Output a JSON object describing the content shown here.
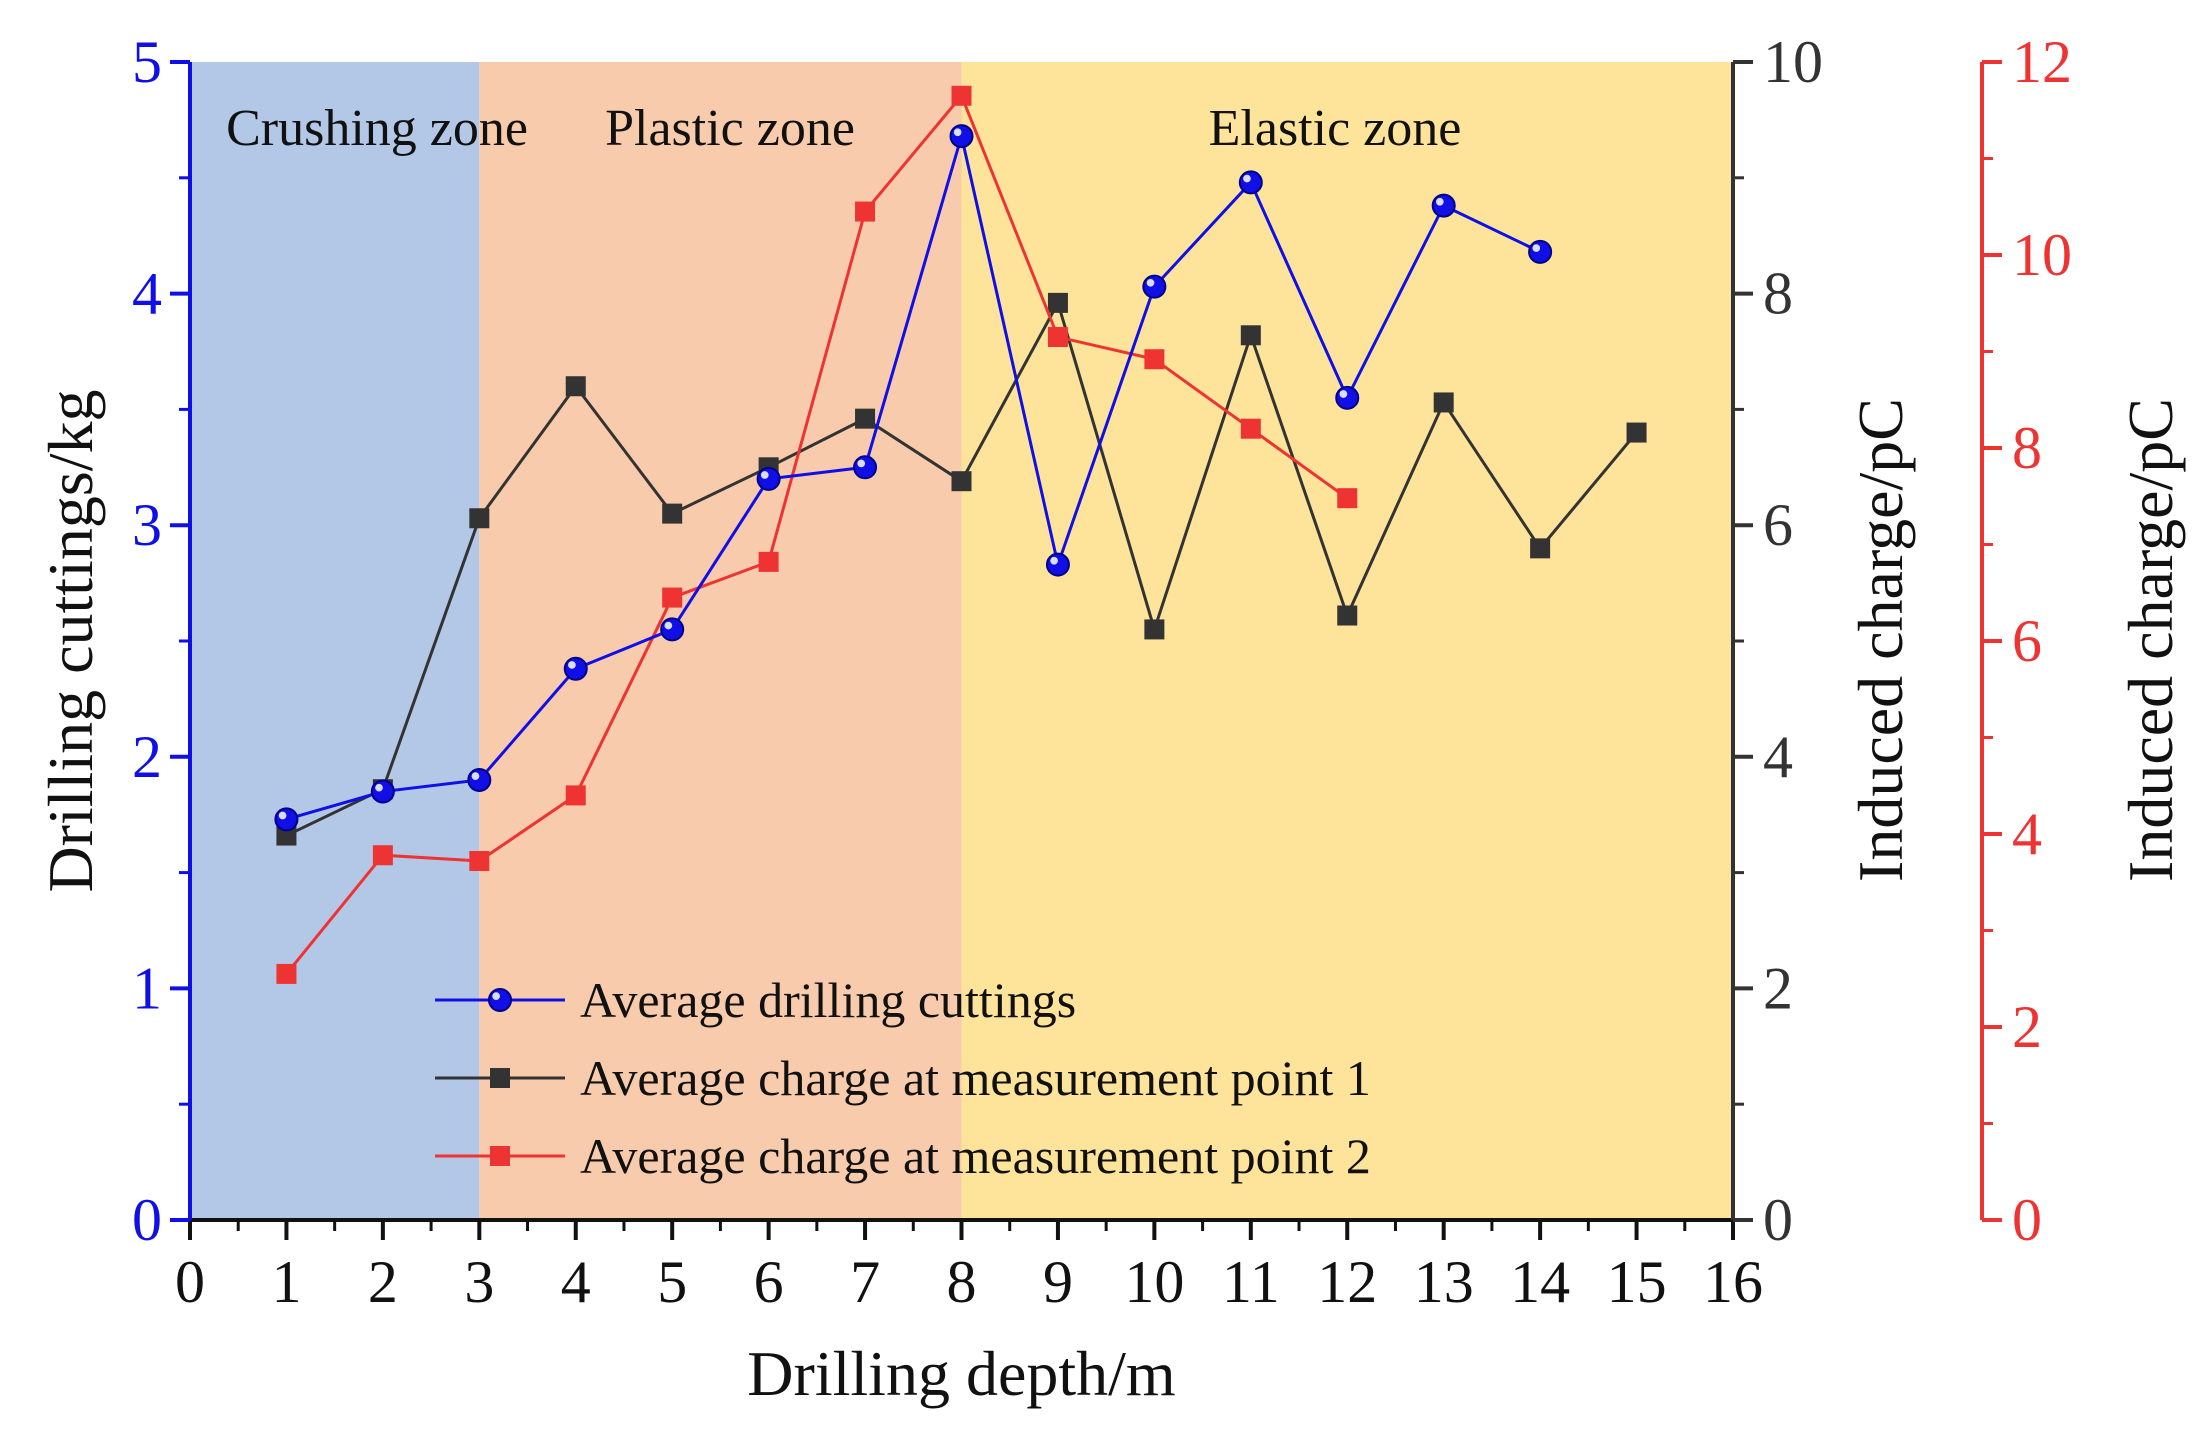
{
  "chart_data": {
    "type": "line",
    "title": "",
    "xlabel": "Drilling depth/m",
    "ylabel": "Drilling cuttings/kg",
    "y2label": "Induced charge/pC",
    "y3label": "Induced charge/pC",
    "xlim": [
      0,
      16
    ],
    "ylim": [
      0,
      5
    ],
    "y2lim": [
      0,
      10
    ],
    "y3lim": [
      0,
      12
    ],
    "x_ticks": [
      0,
      1,
      2,
      3,
      4,
      5,
      6,
      7,
      8,
      9,
      10,
      11,
      12,
      13,
      14,
      15,
      16
    ],
    "y_ticks": [
      0,
      1,
      2,
      3,
      4,
      5
    ],
    "y2_ticks": [
      0,
      2,
      4,
      6,
      8,
      10
    ],
    "y3_ticks": [
      0,
      2,
      4,
      6,
      8,
      10,
      12
    ],
    "zones": [
      {
        "name": "Crushing zone",
        "x_start": 0,
        "x_end": 3,
        "color": "#b3c7e6"
      },
      {
        "name": "Plastic zone",
        "x_start": 3,
        "x_end": 8,
        "color": "#f7cbab"
      },
      {
        "name": "Elastic zone",
        "x_start": 8,
        "x_end": 16,
        "color": "#fde49a"
      }
    ],
    "series": [
      {
        "name": "Average drilling cuttings",
        "axis": "y",
        "marker": "circle",
        "color": "#1010e6",
        "x": [
          1,
          2,
          3,
          4,
          5,
          6,
          7,
          8,
          9,
          10,
          11,
          12,
          13,
          14
        ],
        "values": [
          1.73,
          1.85,
          1.9,
          2.38,
          2.55,
          3.2,
          3.25,
          4.68,
          2.83,
          4.03,
          4.48,
          3.55,
          4.38,
          4.18
        ]
      },
      {
        "name": "Average charge at measurement point 1",
        "axis": "y2",
        "marker": "square",
        "color": "#333333",
        "x": [
          1,
          2,
          3,
          4,
          5,
          6,
          7,
          8,
          9,
          10,
          11,
          12,
          13,
          14,
          15
        ],
        "values": [
          3.32,
          3.72,
          6.06,
          7.2,
          6.1,
          6.5,
          6.92,
          6.38,
          7.92,
          5.1,
          7.64,
          5.22,
          7.06,
          5.8,
          6.8
        ]
      },
      {
        "name": "Average charge at measurement point 2",
        "axis": "y3",
        "marker": "square",
        "color": "#ee3333",
        "x": [
          1,
          2,
          3,
          4,
          5,
          6,
          7,
          8,
          9,
          10,
          11,
          12
        ],
        "values": [
          2.55,
          3.78,
          3.72,
          4.4,
          6.45,
          6.82,
          10.45,
          11.65,
          9.15,
          8.92,
          8.2,
          7.48
        ]
      }
    ],
    "axis_colors": {
      "y": "#1010e6",
      "y2": "#333333",
      "y3": "#ee3333"
    },
    "legend_position": "bottom-center"
  }
}
